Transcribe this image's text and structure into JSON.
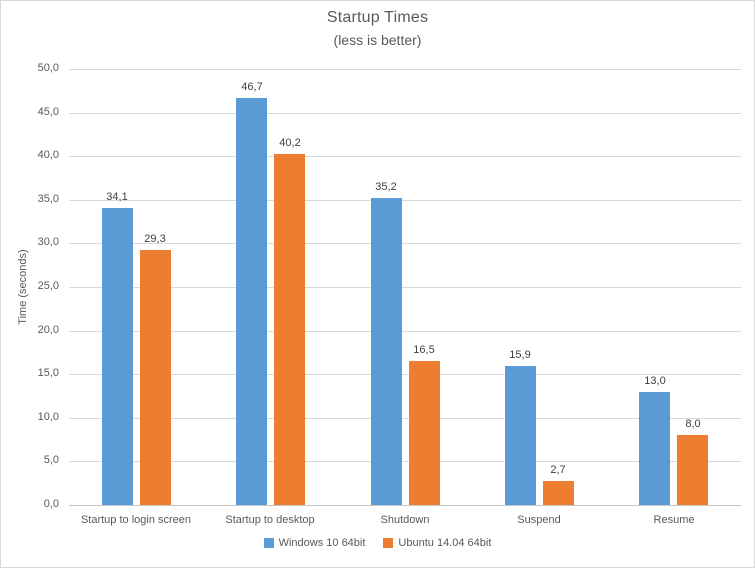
{
  "chart_data": {
    "type": "bar",
    "title": "Startup Times",
    "subtitle": "(less is better)",
    "ylabel": "Time (seconds)",
    "xlabel": "",
    "categories": [
      "Startup to login screen",
      "Startup to desktop",
      "Shutdown",
      "Suspend",
      "Resume"
    ],
    "series": [
      {
        "name": "Windows 10 64bit",
        "color": "#5B9BD5",
        "values": [
          34.1,
          46.7,
          35.2,
          15.9,
          13.0
        ],
        "labels": [
          "34,1",
          "46,7",
          "35,2",
          "15,9",
          "13,0"
        ]
      },
      {
        "name": "Ubuntu 14.04 64bit",
        "color": "#ED7D31",
        "values": [
          29.3,
          40.2,
          16.5,
          2.7,
          8.0
        ],
        "labels": [
          "29,3",
          "40,2",
          "16,5",
          "2,7",
          "8,0"
        ]
      }
    ],
    "ylim": [
      0,
      50
    ],
    "ytick_step": 5,
    "ytick_labels": [
      "0,0",
      "5,0",
      "10,0",
      "15,0",
      "20,0",
      "25,0",
      "30,0",
      "35,0",
      "40,0",
      "45,0",
      "50,0"
    ],
    "grid": true,
    "legend_position": "bottom",
    "colors": {
      "gridline": "#D9D9D9",
      "axis_line": "#C6C6C6",
      "text": "#595959",
      "data_label": "#404040",
      "border": "#D9D9D9",
      "background": "#FFFFFF"
    }
  }
}
